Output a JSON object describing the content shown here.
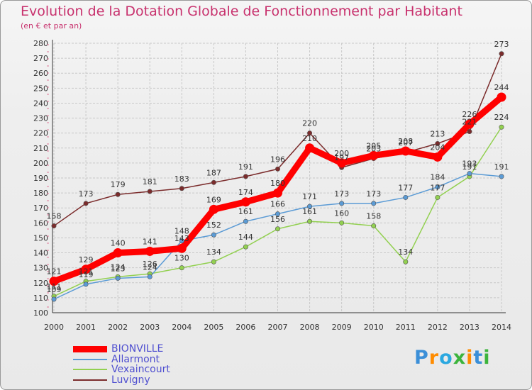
{
  "title": "Evolution de la Dotation Globale de Fonctionnement par Habitant",
  "subtitle": "(en € et par an)",
  "brand": {
    "letters": [
      "P",
      "r",
      "o",
      "x",
      "i",
      "t",
      "i"
    ],
    "colors": [
      "#3b8fd8",
      "#ff8c00",
      "#2ba8e0",
      "#3cb43c",
      "#ff8c00",
      "#3b8fd8",
      "#3cb43c"
    ]
  },
  "chart_data": {
    "type": "line",
    "title": "Evolution de la Dotation Globale de Fonctionnement par Habitant",
    "subtitle": "(en € et par an)",
    "x": [
      "2000",
      "2001",
      "2002",
      "2003",
      "2004",
      "2005",
      "2006",
      "2007",
      "2008",
      "2009",
      "2010",
      "2011",
      "2012",
      "2013",
      "2014"
    ],
    "ylim": [
      100,
      280
    ],
    "yticks": [
      100,
      110,
      120,
      130,
      140,
      150,
      160,
      170,
      180,
      190,
      200,
      210,
      220,
      230,
      240,
      250,
      260,
      270,
      280
    ],
    "grid": true,
    "legend": "bottom-left",
    "series": [
      {
        "name": "BIONVILLE",
        "color": "#ff0000",
        "values": [
          121,
          129,
          140,
          141,
          143,
          169,
          174,
          180,
          210,
          200,
          205,
          208,
          204,
          226,
          244
        ]
      },
      {
        "name": "Allarmont",
        "color": "#5b9bd5",
        "values": [
          109,
          119,
          123,
          124,
          148,
          152,
          161,
          166,
          171,
          173,
          173,
          177,
          184,
          193,
          191
        ]
      },
      {
        "name": "Vexaincourt",
        "color": "#92d050",
        "values": [
          111,
          121,
          124,
          126,
          130,
          134,
          144,
          156,
          161,
          160,
          158,
          134,
          177,
          191,
          224
        ]
      },
      {
        "name": "Luvigny",
        "color": "#7b2c2c",
        "values": [
          158,
          173,
          179,
          181,
          183,
          187,
          191,
          196,
          220,
          197,
          203,
          207,
          213,
          221,
          273
        ]
      }
    ]
  }
}
